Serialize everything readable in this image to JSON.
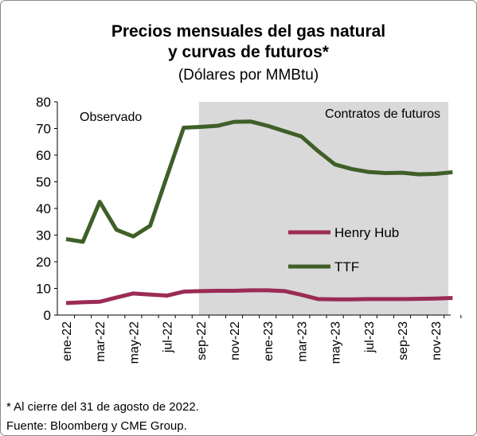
{
  "chart_data": {
    "type": "line",
    "title": [
      "Precios mensuales del gas natural",
      "y curvas de futuros*"
    ],
    "subtitle": "(Dólares por MMBtu)",
    "annotations": [
      "Observado",
      "Contratos de futuros"
    ],
    "footnotes": [
      "* Al cierre del 31 de agosto de 2022.",
      "Fuente: Bloomberg y CME Group."
    ],
    "categories": [
      "ene-22",
      null,
      "mar-22",
      null,
      "may-22",
      null,
      "jul-22",
      null,
      "sep-22",
      null,
      "nov-22",
      null,
      "ene-23",
      null,
      "mar-23",
      null,
      "may-23",
      null,
      "jul-23",
      null,
      "sep-23",
      null,
      "nov-23",
      null
    ],
    "series": [
      {
        "name": "Henry Hub",
        "color": "#9b2c55",
        "values": [
          4.5,
          4.8,
          5.0,
          6.6,
          8.1,
          7.7,
          7.3,
          8.8,
          9.0,
          9.1,
          9.1,
          9.3,
          9.3,
          9.0,
          7.6,
          6.0,
          5.9,
          5.9,
          6.0,
          6.0,
          6.0,
          6.1,
          6.2,
          6.4
        ]
      },
      {
        "name": "TTF",
        "color": "#3f5f28",
        "values": [
          28.5,
          27.5,
          42.5,
          32,
          29.5,
          33.5,
          52,
          70.3,
          70.6,
          71,
          72.5,
          72.6,
          71,
          69,
          67,
          61.5,
          56.5,
          54.8,
          53.7,
          53.3,
          53.4,
          52.8,
          53,
          53.6
        ]
      }
    ],
    "ylim": [
      0,
      80
    ],
    "yticks": [
      0,
      10,
      20,
      30,
      40,
      50,
      60,
      70,
      80
    ]
  }
}
